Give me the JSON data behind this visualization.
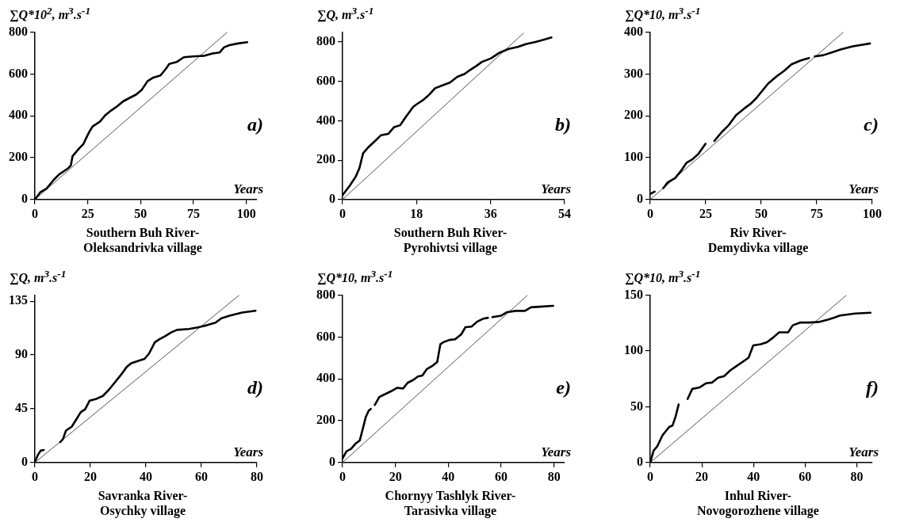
{
  "chart_data": [
    {
      "type": "line",
      "title": "Southern Buh River-\nOleksandrivka village",
      "ylabel": "∑Q*10$^{2}$, m$^{3}$.s$^{-1}$",
      "xlabel": "Years",
      "annotations": [
        "a)"
      ],
      "xlim": [
        0,
        105
      ],
      "xticks": [
        0,
        25,
        50,
        75,
        100
      ],
      "ylim": [
        0,
        800
      ],
      "yticks": [
        0,
        200,
        400,
        600,
        800
      ],
      "grid": false,
      "legend": false,
      "marker": "none",
      "line_style": "solid",
      "series": [
        {
          "color": "#000000",
          "x": [
            0,
            2.7,
            5.5,
            8.9,
            11.6,
            15.7,
            17,
            17.8,
            21,
            23,
            24.6,
            26,
            27.3,
            30.7,
            33.4,
            36,
            39,
            41.7,
            45,
            47.8,
            50.5,
            53.3,
            56,
            59.4,
            62.2,
            63.5,
            67,
            70.4,
            74.5,
            80,
            84,
            87.4,
            89.5,
            92,
            96,
            100.4
          ],
          "values": [
            0,
            36,
            52,
            94,
            121,
            149,
            163,
            207,
            245,
            266,
            301,
            328,
            349,
            372,
            404,
            425,
            446,
            469,
            487,
            501,
            524,
            566,
            583,
            593,
            628,
            648,
            657,
            680,
            684,
            687,
            698,
            703,
            728,
            738,
            746,
            752
          ]
        },
        {
          "color": "#555555",
          "x": [
            0,
            91
          ],
          "values": [
            0,
            800
          ]
        }
      ]
    },
    {
      "type": "line",
      "title": "Southern Buh River-\nPyrohivtsi village",
      "ylabel": "∑Q, m$^{3}$.s$^{-1}$",
      "xlabel": "Years",
      "annotations": [
        "b)"
      ],
      "xlim": [
        0,
        54
      ],
      "xticks": [
        0,
        18,
        36,
        54
      ],
      "ylim": [
        0,
        850
      ],
      "yticks": [
        0,
        200,
        400,
        600,
        800
      ],
      "grid": false,
      "legend": false,
      "marker": "none",
      "line_style": "solid",
      "series": [
        {
          "color": "#000000",
          "x": [
            0,
            1.8,
            3.2,
            4.1,
            5,
            6.4,
            7.9,
            9.3,
            11.1,
            12.5,
            14,
            15.4,
            17.2,
            18.2,
            19.7,
            21.1,
            22.5,
            24.3,
            26.1,
            27.9,
            29.7,
            31.1,
            32.5,
            33.9,
            36.1,
            38.2,
            40.4,
            42.6,
            44.7,
            46.9,
            49,
            50.8
          ],
          "values": [
            22,
            72,
            116,
            159,
            235,
            268,
            297,
            326,
            333,
            367,
            377,
            420,
            471,
            486,
            507,
            533,
            565,
            580,
            594,
            623,
            638,
            659,
            678,
            699,
            717,
            746,
            765,
            775,
            790,
            800,
            812,
            823
          ]
        },
        {
          "color": "#555555",
          "x": [
            0,
            44
          ],
          "values": [
            0,
            845
          ]
        }
      ]
    },
    {
      "type": "line",
      "title": "Riv River-\nDemydivka village",
      "ylabel": "∑Q*10, m$^{3}$.s$^{-1}$",
      "xlabel": "Years",
      "annotations": [
        "c)"
      ],
      "xlim": [
        0,
        100
      ],
      "xticks": [
        0,
        25,
        50,
        75,
        100
      ],
      "ylim": [
        0,
        400
      ],
      "yticks": [
        0,
        100,
        200,
        300,
        400
      ],
      "grid": false,
      "legend": false,
      "marker": "none",
      "line_style": "solid",
      "series": [
        {
          "color": "#000000",
          "x": [
            0.3,
            2,
            4,
            5.9,
            7.9,
            11.2,
            13.8,
            16.4,
            19,
            21.7,
            24.9,
            27,
            28.9,
            32.2,
            35.4,
            38.7,
            42.7,
            45.3,
            47.9,
            50.5,
            53.1,
            57.1,
            60.4,
            63.6,
            67.6,
            71.5,
            73,
            74.1,
            78,
            82,
            86,
            91.2,
            99
          ],
          "values": [
            14,
            19,
            null,
            27,
            41,
            51,
            68,
            88,
            96,
            109,
            133,
            null,
            140,
            161,
            178,
            202,
            219,
            229,
            243,
            260,
            277,
            295,
            308,
            323,
            332,
            338,
            null,
            342,
            345,
            352,
            359,
            366,
            373
          ]
        },
        {
          "color": "#555555",
          "x": [
            0,
            87
          ],
          "values": [
            0,
            400
          ]
        }
      ]
    },
    {
      "type": "line",
      "title": "Savranka River-\nOsychky village",
      "ylabel": "∑Q, m$^{3}$.s$^{-1}$",
      "xlabel": "Years",
      "annotations": [
        "d)"
      ],
      "xlim": [
        0,
        80
      ],
      "xticks": [
        0,
        20,
        40,
        60,
        80
      ],
      "ylim": [
        0,
        140
      ],
      "yticks": [
        0,
        45,
        90,
        135
      ],
      "grid": false,
      "legend": false,
      "marker": "none",
      "line_style": "solid",
      "series": [
        {
          "color": "#000000",
          "x": [
            0,
            1.1,
            2.1,
            3.2,
            6,
            9.1,
            10.1,
            11.2,
            13.3,
            14.9,
            16.5,
            18.1,
            19.7,
            21.9,
            24.5,
            26.7,
            28.8,
            30.9,
            33.1,
            34.7,
            37.3,
            39.5,
            41.1,
            43.2,
            44.8,
            46.9,
            49.1,
            51.2,
            55.5,
            58.7,
            61.9,
            65.1,
            67.2,
            70.4,
            74.7,
            79.5
          ],
          "values": [
            0.5,
            6.4,
            10,
            10.5,
            null,
            17,
            19.5,
            26.7,
            30,
            36,
            42,
            44.5,
            51.7,
            53,
            55.7,
            61,
            67,
            73,
            80,
            83,
            85,
            86.7,
            91,
            100.5,
            103,
            105.7,
            108.8,
            111,
            111.7,
            113,
            114.8,
            117,
            120.7,
            123,
            125.5,
            127
          ]
        },
        {
          "color": "#555555",
          "x": [
            0,
            73.6
          ],
          "values": [
            0,
            140
          ]
        }
      ]
    },
    {
      "type": "line",
      "title": "Chornyy Tashlyk River-\nTarasivka village",
      "ylabel": "∑Q*10, m$^{3}$.s$^{-1}$",
      "xlabel": "Years",
      "annotations": [
        "e)"
      ],
      "xlim": [
        0,
        84
      ],
      "xticks": [
        0,
        20,
        40,
        60,
        80
      ],
      "ylim": [
        0,
        800
      ],
      "yticks": [
        0,
        200,
        400,
        600,
        800
      ],
      "grid": false,
      "legend": false,
      "marker": "none",
      "line_style": "solid",
      "series": [
        {
          "color": "#000000",
          "x": [
            0,
            1.5,
            3.2,
            4.8,
            6.5,
            7.7,
            8.8,
            9.9,
            10.7,
            11.5,
            12.2,
            13.9,
            16.1,
            18.4,
            20.6,
            22.9,
            24.6,
            26.8,
            28.5,
            30.2,
            31.9,
            34.1,
            35.8,
            37,
            38.1,
            40.4,
            42.6,
            44.9,
            46.5,
            48.8,
            51,
            53.3,
            55,
            56,
            56.7,
            60,
            62.3,
            65.6,
            69,
            71.3,
            74.7,
            79.7
          ],
          "values": [
            20,
            54,
            65,
            89,
            105,
            163,
            218,
            248,
            256,
            null,
            275,
            313,
            327,
            341,
            357,
            354,
            381,
            395,
            411,
            416,
            447,
            463,
            480,
            565,
            575,
            586,
            589,
            613,
            647,
            650,
            674,
            688,
            692,
            null,
            695,
            702,
            719,
            725,
            725,
            742,
            745,
            749
          ]
        },
        {
          "color": "#555555",
          "x": [
            0,
            70
          ],
          "values": [
            0,
            800
          ]
        }
      ]
    },
    {
      "type": "line",
      "title": "Inhul River-\nNovogorozhene village",
      "ylabel": "∑Q*10, m$^{3}$.s$^{-1}$",
      "xlabel": "Years",
      "annotations": [
        "f)"
      ],
      "xlim": [
        0,
        86
      ],
      "xticks": [
        0,
        20,
        40,
        60,
        80
      ],
      "ylim": [
        0,
        150
      ],
      "yticks": [
        0,
        50,
        100,
        150
      ],
      "grid": false,
      "legend": false,
      "marker": "none",
      "line_style": "solid",
      "series": [
        {
          "color": "#000000",
          "x": [
            0,
            1.3,
            2.7,
            4.8,
            7.4,
            8.6,
            9.8,
            11,
            13,
            14.5,
            16.3,
            19.2,
            21.6,
            24,
            26.3,
            28.7,
            31,
            33.4,
            36.9,
            38.1,
            39.9,
            42.8,
            45.2,
            47.6,
            49.9,
            53.4,
            55.2,
            58.2,
            61.7,
            65.3,
            68.8,
            71.2,
            73.5,
            79.4,
            85.3
          ],
          "values": [
            0,
            10.6,
            14.4,
            24.5,
            32,
            33,
            41,
            52,
            null,
            57,
            66,
            67.4,
            71,
            71.7,
            76,
            77.5,
            82.6,
            86.4,
            92,
            94,
            105,
            106,
            107.8,
            112,
            116.7,
            116.7,
            123,
            125.5,
            125.5,
            126,
            128,
            129.8,
            131.8,
            133.6,
            134.3
          ]
        },
        {
          "color": "#555555",
          "x": [
            0,
            76
          ],
          "values": [
            0,
            150
          ]
        }
      ]
    }
  ]
}
